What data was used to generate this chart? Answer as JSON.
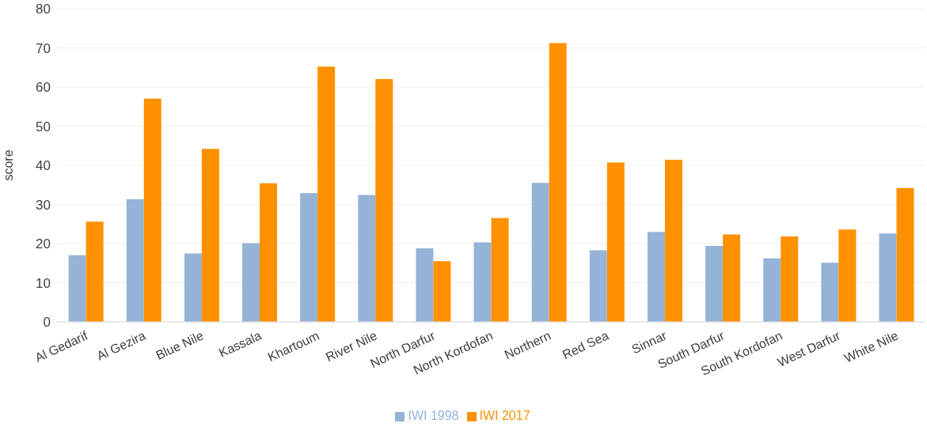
{
  "chart_data": {
    "type": "bar",
    "ylabel": "score",
    "categories": [
      "Al Gedarif",
      "Al Gezira",
      "Blue Nile",
      "Kassala",
      "Khartoum",
      "River Nile",
      "North Darfur",
      "North Kordofan",
      "Northern",
      "Red Sea",
      "Sinnar",
      "South Darfur",
      "South Kordofan",
      "West Darfur",
      "White Nile"
    ],
    "series": [
      {
        "name": "IWI 1998",
        "color": "#95b3d7",
        "values": [
          17,
          31.3,
          17.5,
          20.1,
          32.9,
          32.4,
          18.8,
          20.3,
          35.5,
          18.3,
          23,
          19.4,
          16.2,
          15.1,
          22.6
        ]
      },
      {
        "name": "IWI 2017",
        "color": "#ff9100",
        "values": [
          25.6,
          57,
          44.2,
          35.4,
          65.2,
          62,
          15.5,
          26.5,
          71.2,
          40.7,
          41.4,
          22.3,
          21.8,
          23.6,
          34.2
        ]
      }
    ],
    "ylim": [
      0,
      80
    ],
    "yticks": [
      0,
      10,
      20,
      30,
      40,
      50,
      60,
      70,
      80
    ],
    "grid": "y",
    "legend": "bottom"
  }
}
